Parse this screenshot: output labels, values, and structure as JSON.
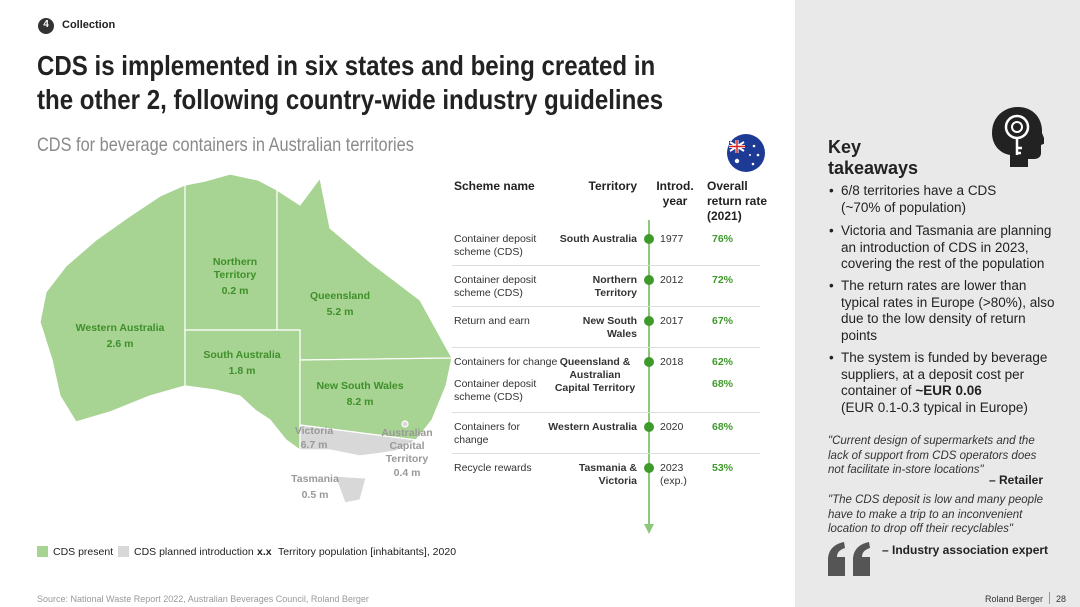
{
  "header": {
    "section_number": "4",
    "section": "Collection",
    "title_lines": [
      "CDS is implemented in six states and being created in",
      "the other 2, following country-wide industry guidelines"
    ],
    "subtitle": "CDS for beverage containers in Australian territories"
  },
  "map": {
    "regions": [
      {
        "name": "Western Australia",
        "population": "2.6 m"
      },
      {
        "name": "Northern Territory",
        "population": "0.2 m"
      },
      {
        "name": "Queensland",
        "population": "5.2 m"
      },
      {
        "name": "South Australia",
        "population": "1.8 m"
      },
      {
        "name": "New South Wales",
        "population": "8.2 m"
      },
      {
        "name": "Victoria",
        "population": "6.7 m"
      },
      {
        "name": "Australian Capital Territory",
        "population": "0.4 m"
      },
      {
        "name": "Tasmania",
        "population": "0.5 m"
      }
    ]
  },
  "legend": {
    "present": "CDS present",
    "planned": "CDS planned introduction",
    "placeholder": "x.x",
    "population": "Territory population [inhabitants], 2020"
  },
  "table": {
    "columns": [
      "Scheme name",
      "Territory",
      "Introd. year",
      "Overall return rate (2021)"
    ],
    "rows": [
      {
        "schemes": [
          "Container deposit scheme (CDS)"
        ],
        "territory": "South Australia",
        "year": "1977",
        "rates": [
          "76%"
        ]
      },
      {
        "schemes": [
          "Container deposit scheme (CDS)"
        ],
        "territory": "Northern Territory",
        "year": "2012",
        "rates": [
          "72%"
        ]
      },
      {
        "schemes": [
          "Return and earn"
        ],
        "territory": "New South Wales",
        "year": "2017",
        "rates": [
          "67%"
        ]
      },
      {
        "schemes": [
          "Containers for change",
          "Container deposit scheme (CDS)"
        ],
        "territory": "Queensland & Australian Capital Territory",
        "year": "2018",
        "rates": [
          "62%",
          "68%"
        ]
      },
      {
        "schemes": [
          "Containers for change"
        ],
        "territory": "Western Australia",
        "year": "2020",
        "rates": [
          "68%"
        ]
      },
      {
        "schemes": [
          "Recycle rewards"
        ],
        "territory": "Tasmania & Victoria",
        "year": "2023 (exp.)",
        "rates": [
          "53%"
        ]
      }
    ]
  },
  "takeaways": {
    "title": "Key takeaways",
    "bullets": [
      {
        "text": "6/8 territories have a CDS (~70% of population)"
      },
      {
        "text": "Victoria and Tasmania are planning an introduction of CDS in 2023, covering the rest of the population"
      },
      {
        "text": "The return rates are lower than typical rates in Europe (>80%), also due to the low density of return points"
      },
      {
        "text": "The system is funded by beverage suppliers, at a deposit cost per container of",
        "bold": "~EUR 0.06",
        "note": "(EUR 0.1-0.3 typical in Europe)"
      }
    ],
    "quotes": [
      {
        "text": "\"Current design of supermarkets and the lack of support from CDS operators does not facilitate in-store locations\"",
        "source": "– Retailer"
      },
      {
        "text": "\"The CDS deposit is low and many people have to make a trip to an inconvenient location to drop off their recyclables\"",
        "source": "– Industry association expert"
      }
    ]
  },
  "footer": {
    "source": "Source: National Waste Report 2022, Australian Beverages Council, Roland Berger",
    "company": "Roland Berger",
    "page": "28"
  }
}
